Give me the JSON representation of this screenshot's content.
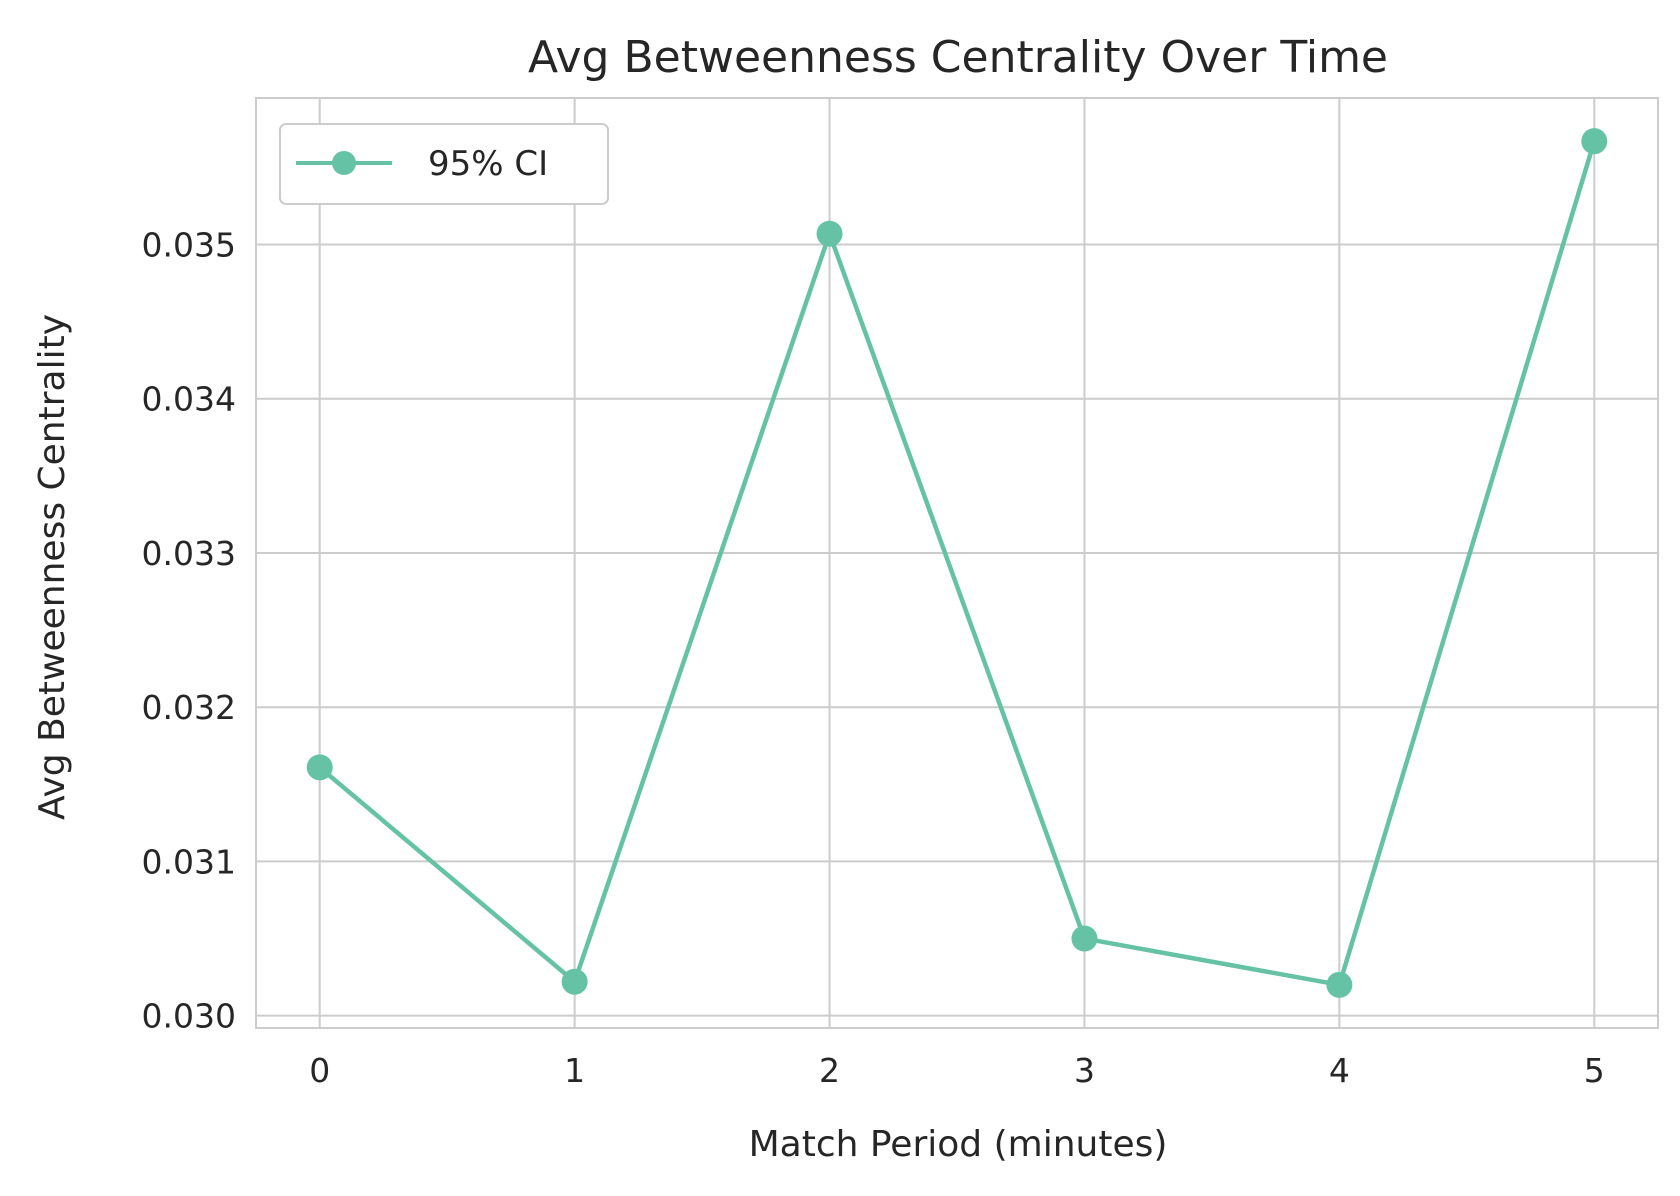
{
  "chart_data": {
    "type": "line",
    "title": "Avg Betweenness Centrality Over Time",
    "xlabel": "Match Period (minutes)",
    "ylabel": "Avg Betweenness Centrality",
    "x": [
      0,
      1,
      2,
      3,
      4,
      5
    ],
    "xticks": [
      "0",
      "1",
      "2",
      "3",
      "4",
      "5"
    ],
    "yticks": [
      "0.030",
      "0.031",
      "0.032",
      "0.033",
      "0.034",
      "0.035"
    ],
    "ytick_values": [
      0.03,
      0.031,
      0.032,
      0.033,
      0.034,
      0.035
    ],
    "xlim": [
      -0.25,
      5.25
    ],
    "ylim": [
      0.02992,
      0.03595
    ],
    "grid": true,
    "legend": {
      "position": "top-left"
    },
    "series": [
      {
        "name": "95% CI",
        "color": "#66c2a5",
        "marker": "circle",
        "values": [
          0.03161,
          0.03022,
          0.03507,
          0.0305,
          0.0302,
          0.03567
        ]
      }
    ]
  }
}
